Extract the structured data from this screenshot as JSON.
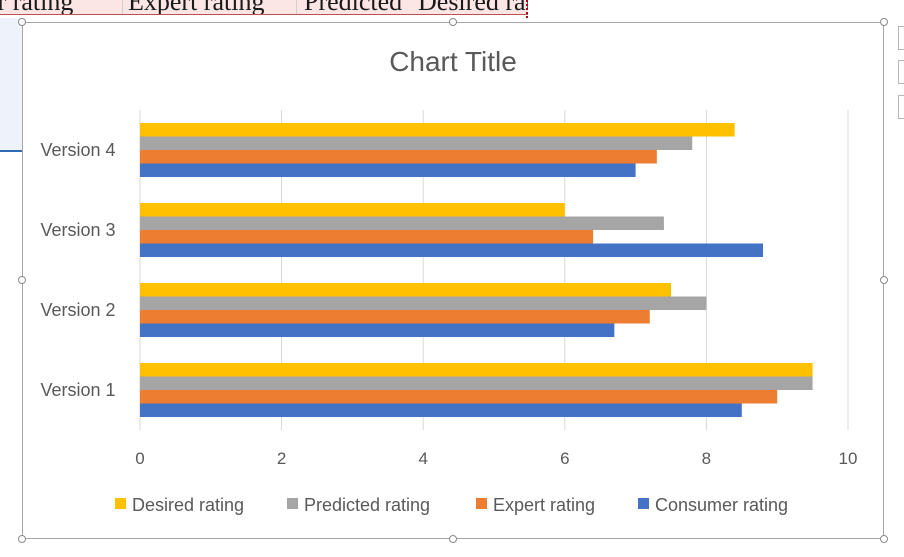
{
  "sheet": {
    "header_cells": [
      "er rating",
      "Expert rating",
      "Predicted",
      "Desired rating"
    ]
  },
  "chart_data": {
    "type": "bar",
    "orientation": "horizontal",
    "title": "Chart Title",
    "categories": [
      "Version 1",
      "Version 2",
      "Version 3",
      "Version 4"
    ],
    "series": [
      {
        "name": "Consumer rating",
        "values": [
          8.5,
          6.7,
          8.8,
          7.0
        ],
        "color": "#4472c4"
      },
      {
        "name": "Expert rating",
        "values": [
          9.0,
          7.2,
          6.4,
          7.3
        ],
        "color": "#ed7d31"
      },
      {
        "name": "Predicted rating",
        "values": [
          9.5,
          8.0,
          7.4,
          7.8
        ],
        "color": "#a5a5a5"
      },
      {
        "name": "Desired rating",
        "values": [
          9.5,
          7.5,
          6.0,
          8.4
        ],
        "color": "#ffc000"
      }
    ],
    "xlim": [
      0,
      10
    ],
    "xticks": [
      "0",
      "2",
      "4",
      "6",
      "8",
      "10"
    ],
    "legend_order": [
      "Desired rating",
      "Predicted rating",
      "Expert rating",
      "Consumer rating"
    ],
    "legend_position": "bottom",
    "grid": true
  }
}
